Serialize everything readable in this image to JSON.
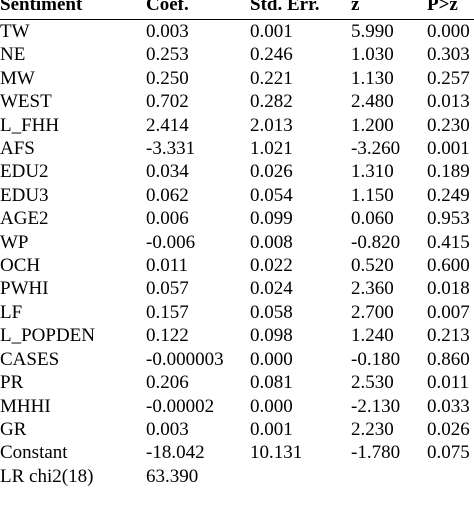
{
  "table": {
    "headers": [
      "Sentiment",
      "Coef.",
      "Std. Err.",
      "z",
      "P>z"
    ],
    "rows": [
      {
        "var": "TW",
        "coef": "0.003",
        "se": "0.001",
        "z": "5.990",
        "p": "0.000"
      },
      {
        "var": "NE",
        "coef": "0.253",
        "se": "0.246",
        "z": "1.030",
        "p": "0.303"
      },
      {
        "var": "MW",
        "coef": "0.250",
        "se": "0.221",
        "z": "1.130",
        "p": "0.257"
      },
      {
        "var": "WEST",
        "coef": "0.702",
        "se": "0.282",
        "z": "2.480",
        "p": "0.013"
      },
      {
        "var": "L_FHH",
        "coef": "2.414",
        "se": "2.013",
        "z": "1.200",
        "p": "0.230"
      },
      {
        "var": "AFS",
        "coef": "-3.331",
        "se": "1.021",
        "z": "-3.260",
        "p": "0.001"
      },
      {
        "var": "EDU2",
        "coef": "0.034",
        "se": "0.026",
        "z": "1.310",
        "p": "0.189"
      },
      {
        "var": "EDU3",
        "coef": "0.062",
        "se": "0.054",
        "z": "1.150",
        "p": "0.249"
      },
      {
        "var": "AGE2",
        "coef": "0.006",
        "se": "0.099",
        "z": "0.060",
        "p": "0.953"
      },
      {
        "var": "WP",
        "coef": "-0.006",
        "se": "0.008",
        "z": "-0.820",
        "p": "0.415"
      },
      {
        "var": "OCH",
        "coef": "0.011",
        "se": "0.022",
        "z": "0.520",
        "p": "0.600"
      },
      {
        "var": "PWHI",
        "coef": "0.057",
        "se": "0.024",
        "z": "2.360",
        "p": "0.018"
      },
      {
        "var": "LF",
        "coef": "0.157",
        "se": "0.058",
        "z": "2.700",
        "p": "0.007"
      },
      {
        "var": "L_POPDEN",
        "coef": "0.122",
        "se": "0.098",
        "z": "1.240",
        "p": "0.213"
      },
      {
        "var": "CASES",
        "coef": "-0.000003",
        "se": "0.000",
        "z": "-0.180",
        "p": "0.860"
      },
      {
        "var": "PR",
        "coef": "0.206",
        "se": "0.081",
        "z": "2.530",
        "p": "0.011"
      },
      {
        "var": "MHHI",
        "coef": "-0.00002",
        "se": "0.000",
        "z": "-2.130",
        "p": "0.033"
      },
      {
        "var": "GR",
        "coef": "0.003",
        "se": "0.001",
        "z": "2.230",
        "p": "0.026"
      },
      {
        "var": "Constant",
        "coef": "-18.042",
        "se": "10.131",
        "z": "-1.780",
        "p": "0.075"
      },
      {
        "var": "LR chi2(18)",
        "coef": "63.390",
        "se": "",
        "z": "",
        "p": ""
      }
    ]
  }
}
